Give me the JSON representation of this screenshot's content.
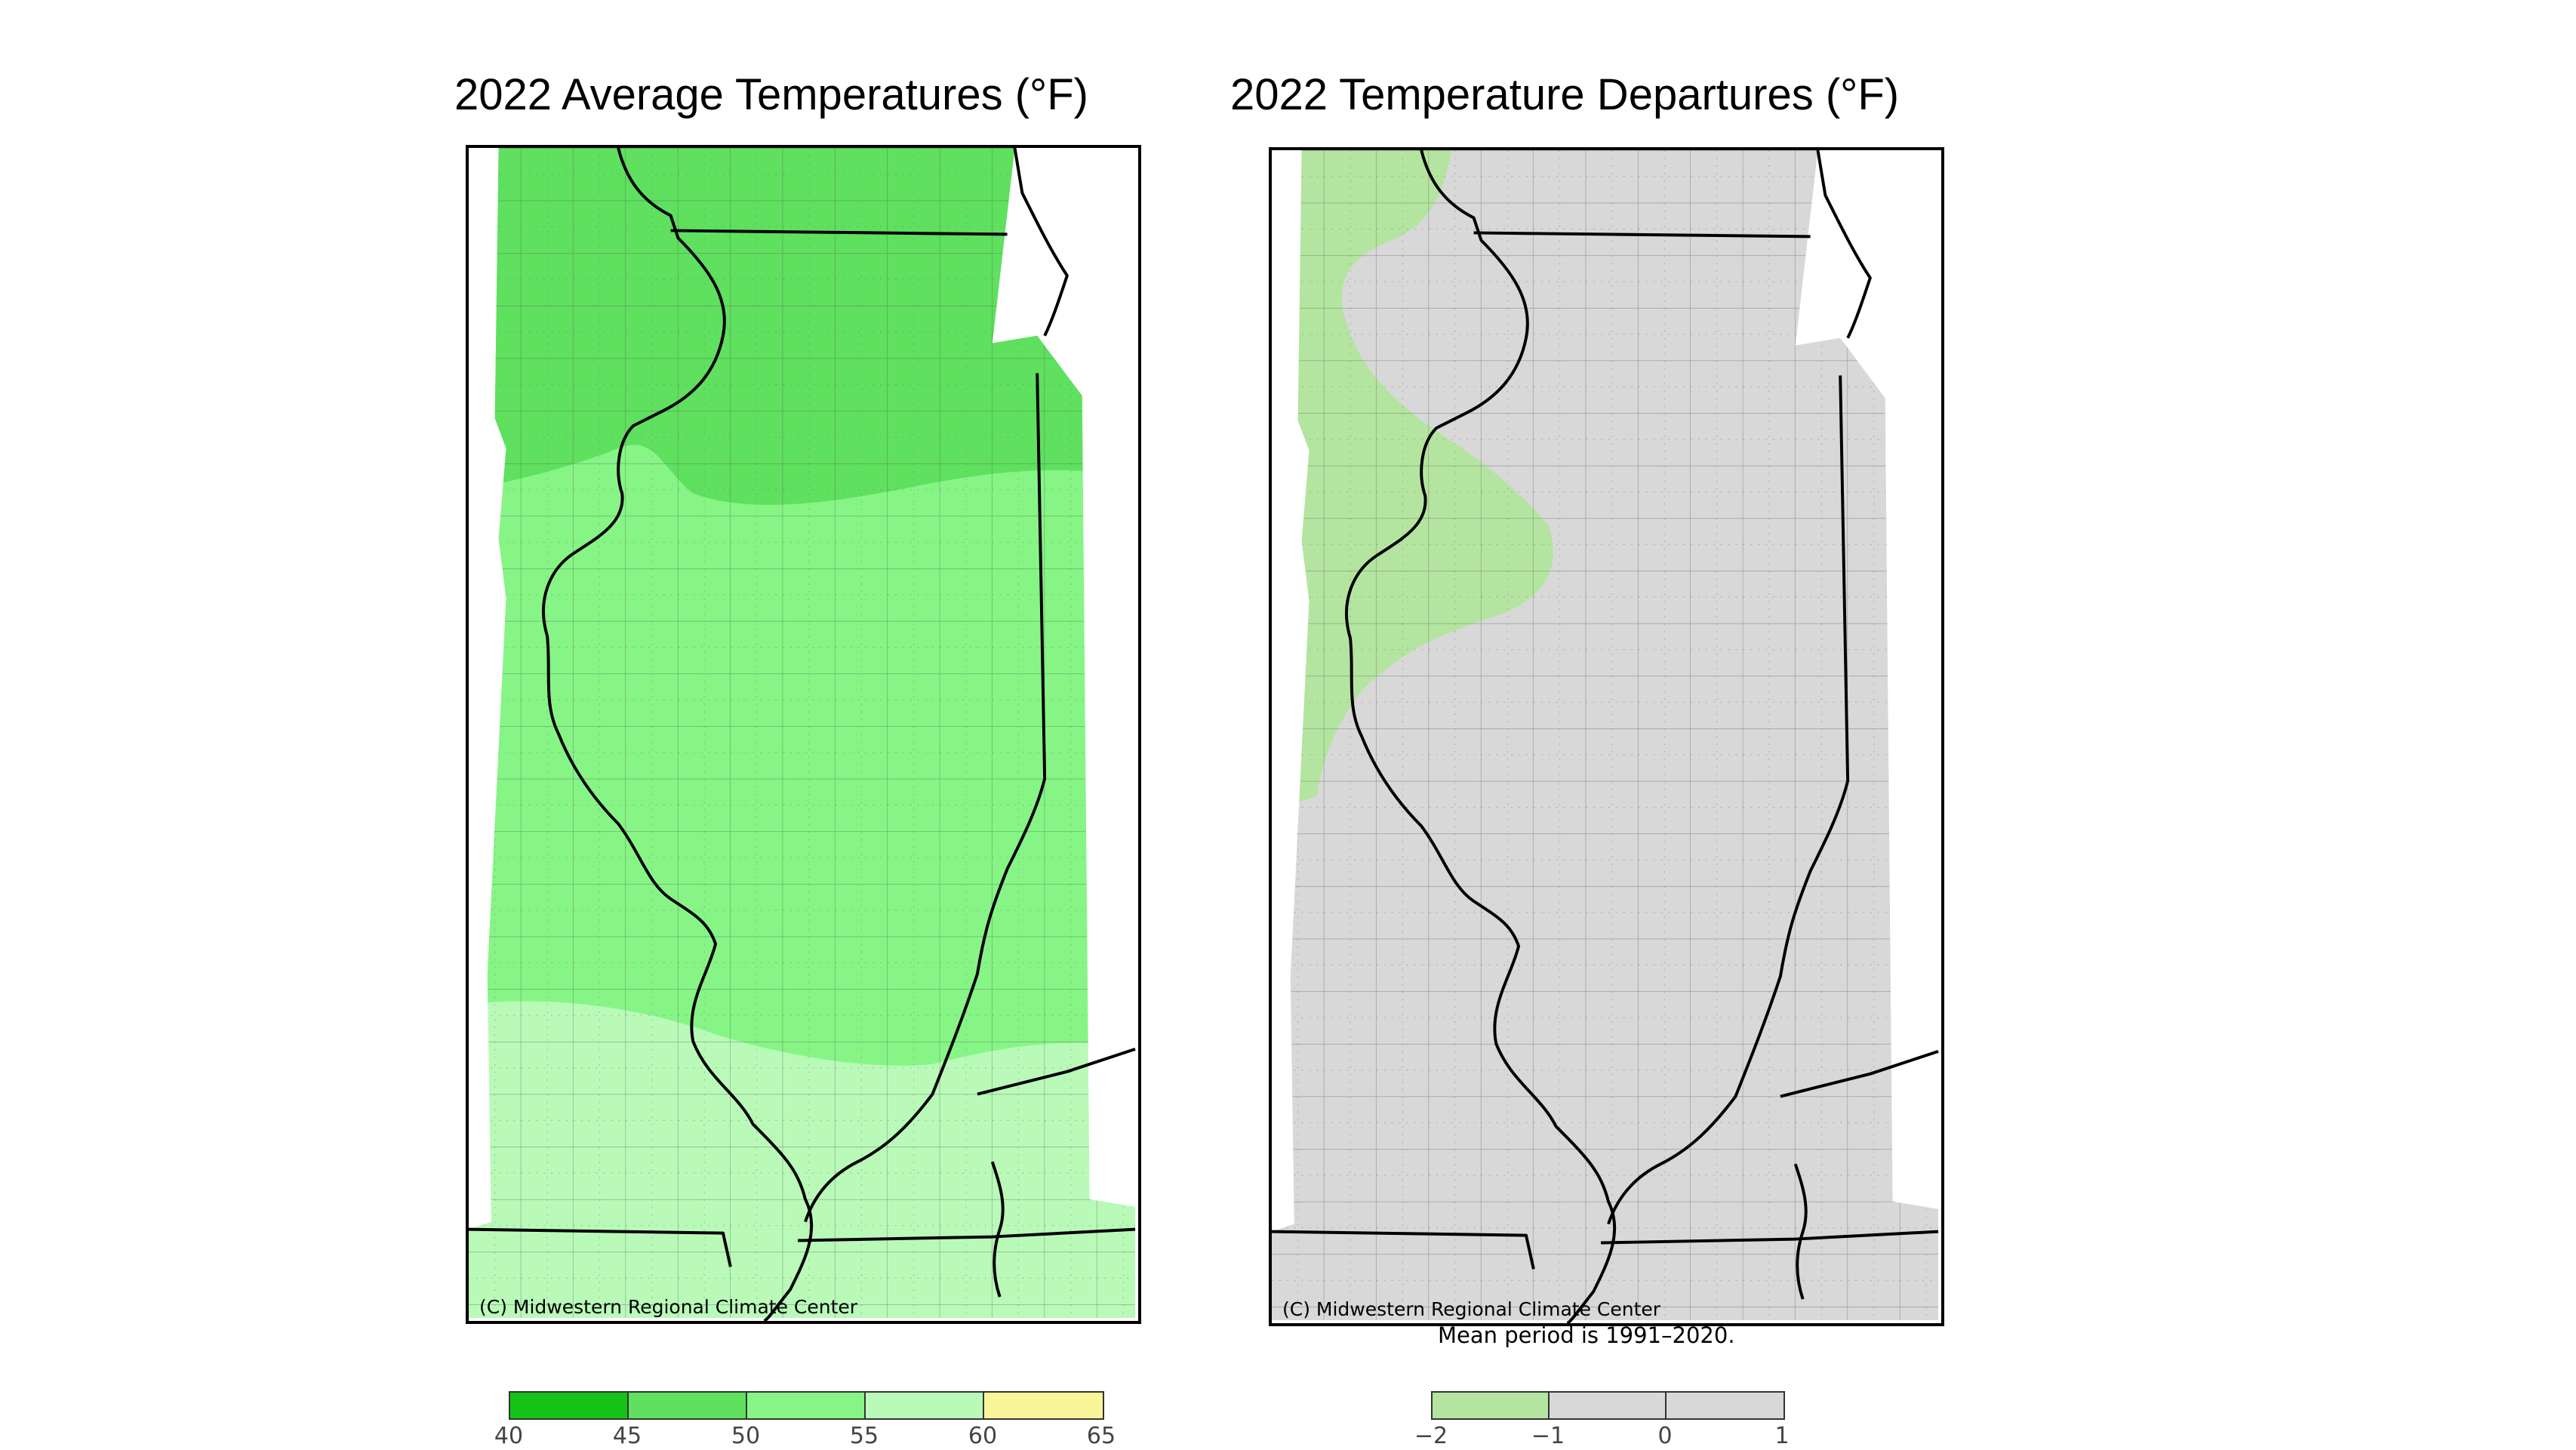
{
  "titles": {
    "left": "2022 Average Temperatures (°F)",
    "right": "2022 Temperature Departures (°F)"
  },
  "maps": {
    "left": {
      "credit": "(C) Midwestern Regional Climate Center"
    },
    "right": {
      "credit": "(C) Midwestern Regional Climate Center",
      "note": "Mean period is 1991–2020."
    }
  },
  "legends": {
    "left": {
      "bins": [
        {
          "from": 40,
          "to": 45,
          "color": "#16c216"
        },
        {
          "from": 45,
          "to": 50,
          "color": "#5fe05f"
        },
        {
          "from": 50,
          "to": 55,
          "color": "#86f586"
        },
        {
          "from": 55,
          "to": 60,
          "color": "#b9fab9"
        },
        {
          "from": 60,
          "to": 65,
          "color": "#fbf59a"
        }
      ],
      "ticks": [
        "40",
        "45",
        "50",
        "55",
        "60",
        "65"
      ]
    },
    "right": {
      "bins": [
        {
          "from": -2,
          "to": -1,
          "color": "#b4e5a0"
        },
        {
          "from": -1,
          "to": 0,
          "color": "#d8d8d8"
        },
        {
          "from": 0,
          "to": 1,
          "color": "#d8d8d8"
        }
      ],
      "ticks": [
        "−2",
        "−1",
        "0",
        "1"
      ]
    }
  },
  "zones": {
    "left": [
      {
        "name": "45–50 °F (north)",
        "color": "#5fe05f"
      },
      {
        "name": "50–55 °F (central)",
        "color": "#86f586"
      },
      {
        "name": "55–60 °F (south)",
        "color": "#b9fab9"
      }
    ],
    "right": [
      {
        "name": "−2 to −1 °F (west)",
        "color": "#b4e5a0"
      },
      {
        "name": "−1 to 1 °F (most of state)",
        "color": "#d8d8d8"
      }
    ]
  }
}
